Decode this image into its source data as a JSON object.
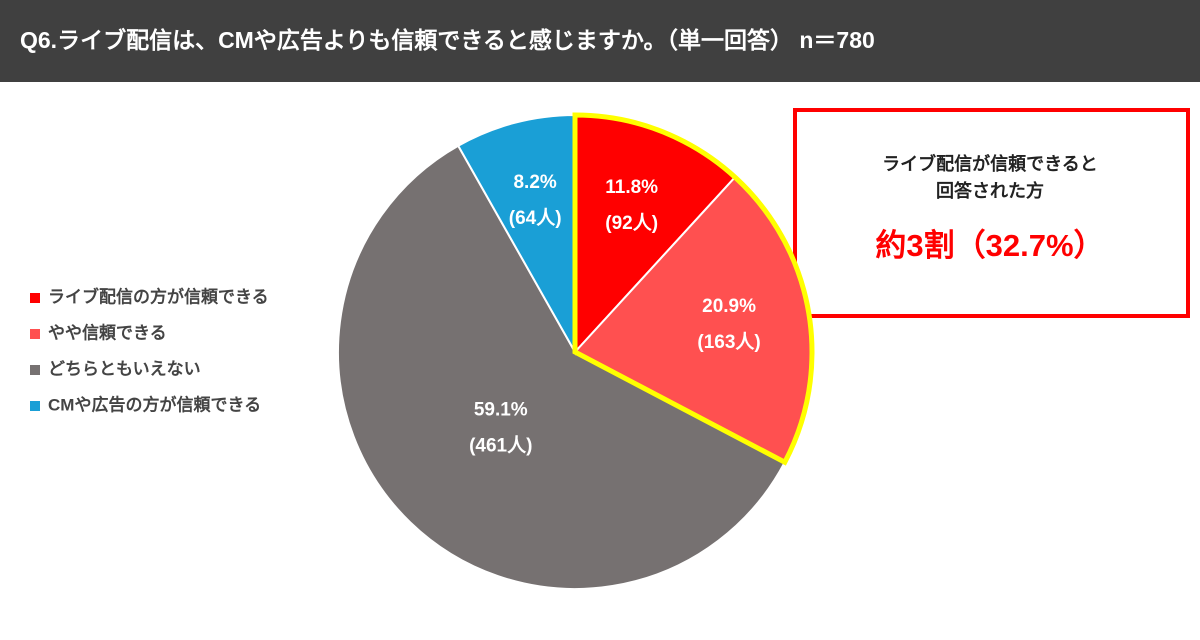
{
  "chart_data": {
    "type": "pie",
    "title": "Q6.ライブ配信は、CMや広告よりも信頼できると感じますか。（単一回答） n＝780",
    "categories": [
      "ライブ配信の方が信頼できる",
      "やや信頼できる",
      "どちらともいえない",
      "CMや広告の方が信頼できる"
    ],
    "values": [
      11.8,
      20.9,
      59.1,
      8.2
    ],
    "value_labels": [
      "11.8%",
      "20.9%",
      "59.1%",
      "8.2%"
    ],
    "counts": [
      92,
      163,
      461,
      64
    ],
    "count_labels": [
      "(92人)",
      "(163人)",
      "(461人)",
      "(64人)"
    ],
    "colors": [
      "#ff0000",
      "#ff5050",
      "#767171",
      "#1a9fd6"
    ],
    "highlight_color": "#ffff00",
    "annotation": {
      "lines": [
        "ライブ配信が信頼できると",
        "回答された方"
      ],
      "highlight": "約3割（32.7%）"
    }
  }
}
